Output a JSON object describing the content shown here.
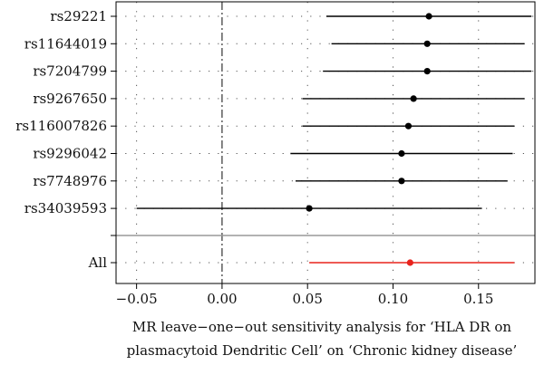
{
  "chart_data": {
    "type": "scatter",
    "subtype": "forest-plot",
    "xlabel_lines": [
      "MR leave−one−out sensitivity analysis for ‘HLA DR on",
      "plasmacytoid Dendritic Cell’ on ‘Chronic kidney disease’"
    ],
    "xlim": [
      -0.062,
      0.183
    ],
    "x_ticks": [
      -0.05,
      0.0,
      0.05,
      0.1,
      0.15
    ],
    "x_tick_labels": [
      "−0.05",
      "0.00",
      "0.05",
      "0.10",
      "0.15"
    ],
    "grid": "dotted",
    "zero_line": "dashed",
    "rows": [
      {
        "label": "rs29221",
        "estimate": 0.121,
        "ci_low": 0.061,
        "ci_high": 0.181
      },
      {
        "label": "rs11644019",
        "estimate": 0.12,
        "ci_low": 0.064,
        "ci_high": 0.177
      },
      {
        "label": "rs7204799",
        "estimate": 0.12,
        "ci_low": 0.059,
        "ci_high": 0.181
      },
      {
        "label": "rs9267650",
        "estimate": 0.112,
        "ci_low": 0.047,
        "ci_high": 0.177
      },
      {
        "label": "rs116007826",
        "estimate": 0.109,
        "ci_low": 0.047,
        "ci_high": 0.171
      },
      {
        "label": "rs9296042",
        "estimate": 0.105,
        "ci_low": 0.04,
        "ci_high": 0.17
      },
      {
        "label": "rs7748976",
        "estimate": 0.105,
        "ci_low": 0.043,
        "ci_high": 0.167
      },
      {
        "label": "rs34039593",
        "estimate": 0.051,
        "ci_low": -0.05,
        "ci_high": 0.152
      }
    ],
    "overall": {
      "label": "All",
      "estimate": 0.11,
      "ci_low": 0.051,
      "ci_high": 0.171
    },
    "colors": {
      "snp": "#000000",
      "overall": "#e8231c",
      "grid": "#555555",
      "separator": "#999999",
      "frame": "#000000"
    }
  }
}
